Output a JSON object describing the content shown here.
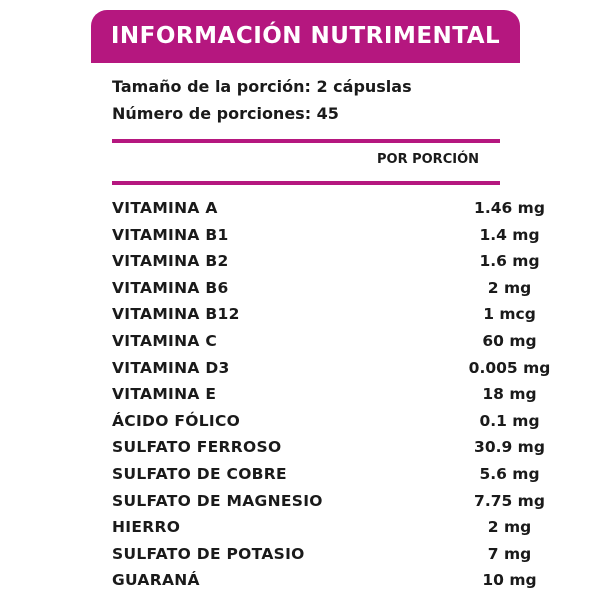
{
  "title": "INFORMACIÓN NUTRIMENTAL",
  "serving_size": "Tamaño de la porción: 2 cápuslas",
  "servings_count": "Número de porciones: 45",
  "column_header": "POR PORCIÓN",
  "accent_color": "#b5177f",
  "nutrients": [
    {
      "name": "VITAMINA A",
      "value": "1.46 mg"
    },
    {
      "name": "VITAMINA B1",
      "value": "1.4 mg"
    },
    {
      "name": "VITAMINA B2",
      "value": "1.6 mg"
    },
    {
      "name": "VITAMINA B6",
      "value": "2 mg"
    },
    {
      "name": "VITAMINA B12",
      "value": "1 mcg"
    },
    {
      "name": "VITAMINA C",
      "value": "60 mg"
    },
    {
      "name": "VITAMINA D3",
      "value": "0.005 mg"
    },
    {
      "name": "VITAMINA E",
      "value": "18 mg"
    },
    {
      "name": "ÁCIDO FÓLICO",
      "value": "0.1 mg"
    },
    {
      "name": "SULFATO FERROSO",
      "value": "30.9 mg"
    },
    {
      "name": "SULFATO DE COBRE",
      "value": "5.6 mg"
    },
    {
      "name": "SULFATO DE MAGNESIO",
      "value": "7.75 mg"
    },
    {
      "name": "HIERRO",
      "value": "2 mg"
    },
    {
      "name": "SULFATO DE POTASIO",
      "value": "7 mg"
    },
    {
      "name": "GUARANÁ",
      "value": "10 mg"
    }
  ]
}
